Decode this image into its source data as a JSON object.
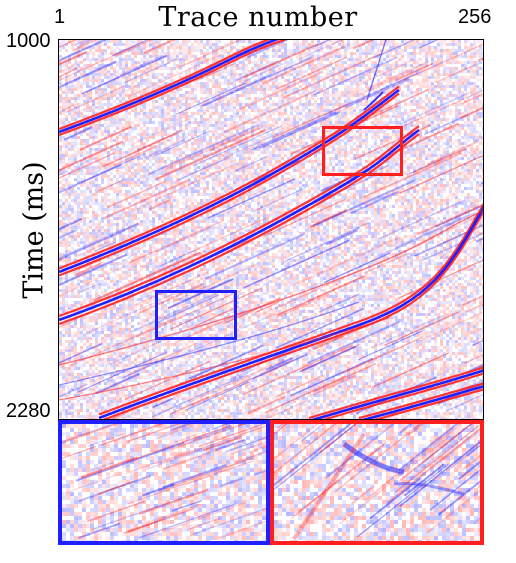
{
  "figure": {
    "title": "Trace number",
    "y_label": "Time (ms)",
    "x_axis": {
      "min_label": "1",
      "max_label": "256"
    },
    "y_axis": {
      "top_label": "1000",
      "bottom_label": "2280"
    },
    "colormap": {
      "positive": "#ff1f1f",
      "negative": "#1f1fff",
      "zero": "#ffffff"
    },
    "highlight_boxes": [
      {
        "id": "red-box",
        "color": "#ff1f1f"
      },
      {
        "id": "blue-box",
        "color": "#1f1fff"
      }
    ]
  }
}
